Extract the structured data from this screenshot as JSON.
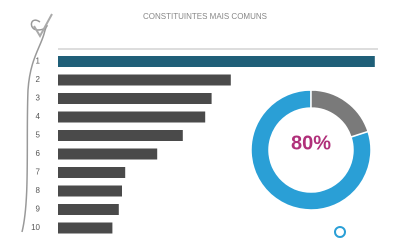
{
  "chart_data": [
    {
      "type": "bar",
      "orientation": "horizontal",
      "title": "CONSTITUINTES MAIS COMUNS",
      "categories": [
        "1",
        "2",
        "3",
        "4",
        "5",
        "6",
        "7",
        "8",
        "9",
        "10"
      ],
      "values": [
        99,
        54,
        48,
        46,
        39,
        31,
        21,
        20,
        19,
        17
      ],
      "colors": [
        "#1f5f78",
        "#4a4a4a",
        "#4a4a4a",
        "#4a4a4a",
        "#4a4a4a",
        "#4a4a4a",
        "#4a4a4a",
        "#4a4a4a",
        "#4a4a4a",
        "#4a4a4a"
      ],
      "xlim": [
        0,
        100
      ]
    },
    {
      "type": "pie",
      "donut": true,
      "values": [
        80,
        20
      ],
      "value_labels": [
        "80%",
        null
      ],
      "colors": [
        "#2a9fd6",
        "#7a7a7a"
      ]
    }
  ]
}
